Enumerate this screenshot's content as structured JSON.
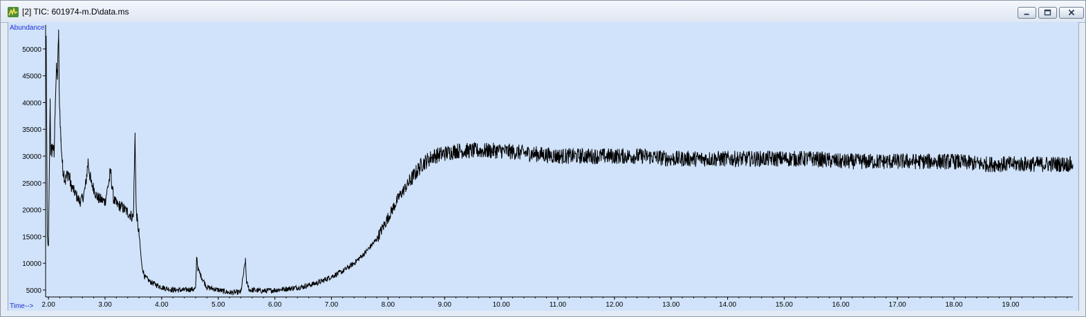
{
  "window": {
    "title": "[2] TIC: 601974-m.D\\data.ms",
    "buttons": [
      "minimize",
      "restore",
      "close"
    ],
    "icon": "chromatogram-app-icon"
  },
  "chart_data": {
    "type": "line",
    "ylabel": "Abundance",
    "xlabel": "Time-->",
    "xlim": [
      1.95,
      20.1
    ],
    "ylim": [
      3700,
      54500
    ],
    "x_ticks": [
      "2.00",
      "3.00",
      "4.00",
      "5.00",
      "6.00",
      "7.00",
      "8.00",
      "9.00",
      "10.00",
      "11.00",
      "12.00",
      "13.00",
      "14.00",
      "15.00",
      "16.00",
      "17.00",
      "18.00",
      "19.00"
    ],
    "y_ticks": [
      "5000",
      "10000",
      "15000",
      "20000",
      "25000",
      "30000",
      "35000",
      "40000",
      "45000",
      "50000"
    ],
    "grid": false,
    "series": [
      {
        "color": "#000000",
        "x": [
          1.96,
          1.98,
          2.0,
          2.03,
          2.04,
          2.06,
          2.08,
          2.1,
          2.12,
          2.14,
          2.16,
          2.18,
          2.19,
          2.22,
          2.25,
          2.3,
          2.35,
          2.4,
          2.45,
          2.5,
          2.55,
          2.6,
          2.65,
          2.7,
          2.75,
          2.8,
          2.85,
          2.9,
          3.0,
          3.1,
          3.15,
          3.2,
          3.3,
          3.4,
          3.5,
          3.53,
          3.55,
          3.57,
          3.6,
          3.65,
          3.7,
          3.8,
          4.0,
          4.2,
          4.4,
          4.6,
          4.62,
          4.64,
          4.7,
          4.8,
          5.0,
          5.2,
          5.4,
          5.48,
          5.5,
          5.55,
          5.6,
          5.8,
          6.0,
          6.2,
          6.5,
          6.8,
          7.0,
          7.2,
          7.4,
          7.6,
          7.8,
          8.0,
          8.2,
          8.4,
          8.6,
          8.8,
          9.0,
          9.2,
          9.5,
          9.8,
          10.0,
          10.5,
          11.0,
          11.5,
          12.0,
          12.5,
          13.0,
          13.5,
          14.0,
          14.5,
          15.0,
          15.5,
          16.0,
          16.5,
          17.0,
          17.5,
          18.0,
          18.5,
          19.0,
          19.5,
          20.0,
          20.1
        ],
        "y": [
          52000,
          15000,
          13000,
          40500,
          31000,
          31000,
          32000,
          30000,
          40000,
          46000,
          45000,
          53500,
          42000,
          33000,
          28000,
          25500,
          27000,
          24500,
          23500,
          22500,
          21500,
          22000,
          24000,
          29000,
          25000,
          24000,
          22500,
          22000,
          21500,
          27000,
          22000,
          21000,
          20500,
          19500,
          18500,
          34000,
          20000,
          18000,
          15500,
          9500,
          7500,
          6500,
          5500,
          5000,
          5000,
          5200,
          11500,
          9000,
          7500,
          5500,
          5000,
          4500,
          4600,
          10500,
          6500,
          5000,
          5000,
          4800,
          5000,
          5200,
          5600,
          6500,
          7500,
          8500,
          10000,
          12000,
          14500,
          18500,
          22500,
          25500,
          28500,
          30000,
          30500,
          31000,
          31000,
          31000,
          31000,
          30500,
          30000,
          30000,
          30000,
          30000,
          29500,
          29500,
          29500,
          29500,
          29500,
          29500,
          29000,
          29000,
          29000,
          29000,
          29000,
          28500,
          28500,
          28500,
          28500,
          28500
        ]
      }
    ]
  }
}
